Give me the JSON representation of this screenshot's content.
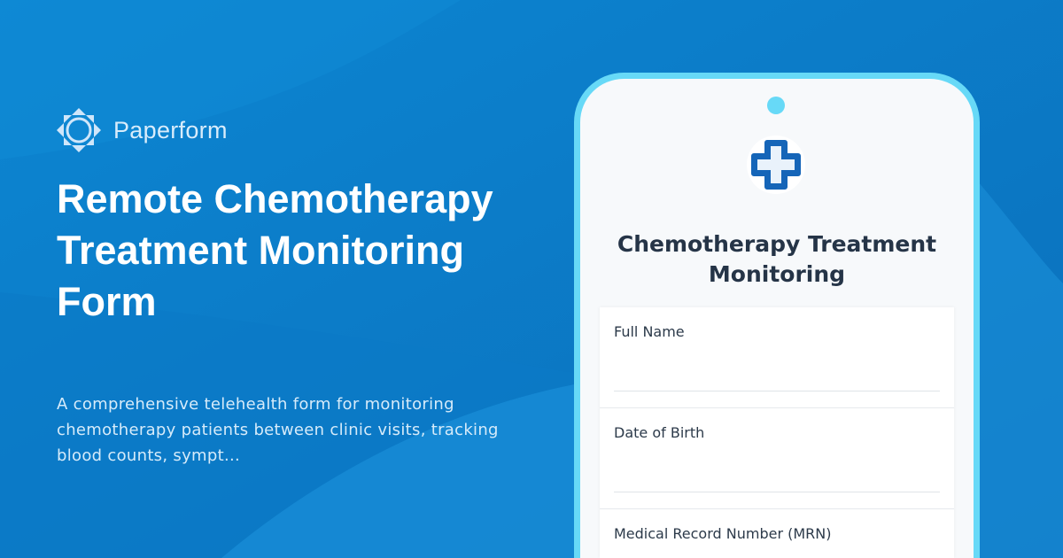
{
  "brand": {
    "name": "Paperform",
    "icon": "paperform-logo-icon"
  },
  "hero": {
    "title": "Remote Chemotherapy Treatment Monitoring Form",
    "description": "A comprehensive telehealth form for monitoring chemotherapy patients between clinic visits, tracking blood counts, sympt..."
  },
  "form": {
    "icon": "medical-cross-icon",
    "title": "Chemotherapy Treatment Monitoring",
    "fields": [
      {
        "label": "Full Name",
        "value": ""
      },
      {
        "label": "Date of Birth",
        "value": ""
      },
      {
        "label": "Medical Record Number (MRN)",
        "value": ""
      }
    ]
  },
  "colors": {
    "background": "#0b78c5",
    "phone_border": "#67d9f7",
    "title_text": "#253447"
  }
}
